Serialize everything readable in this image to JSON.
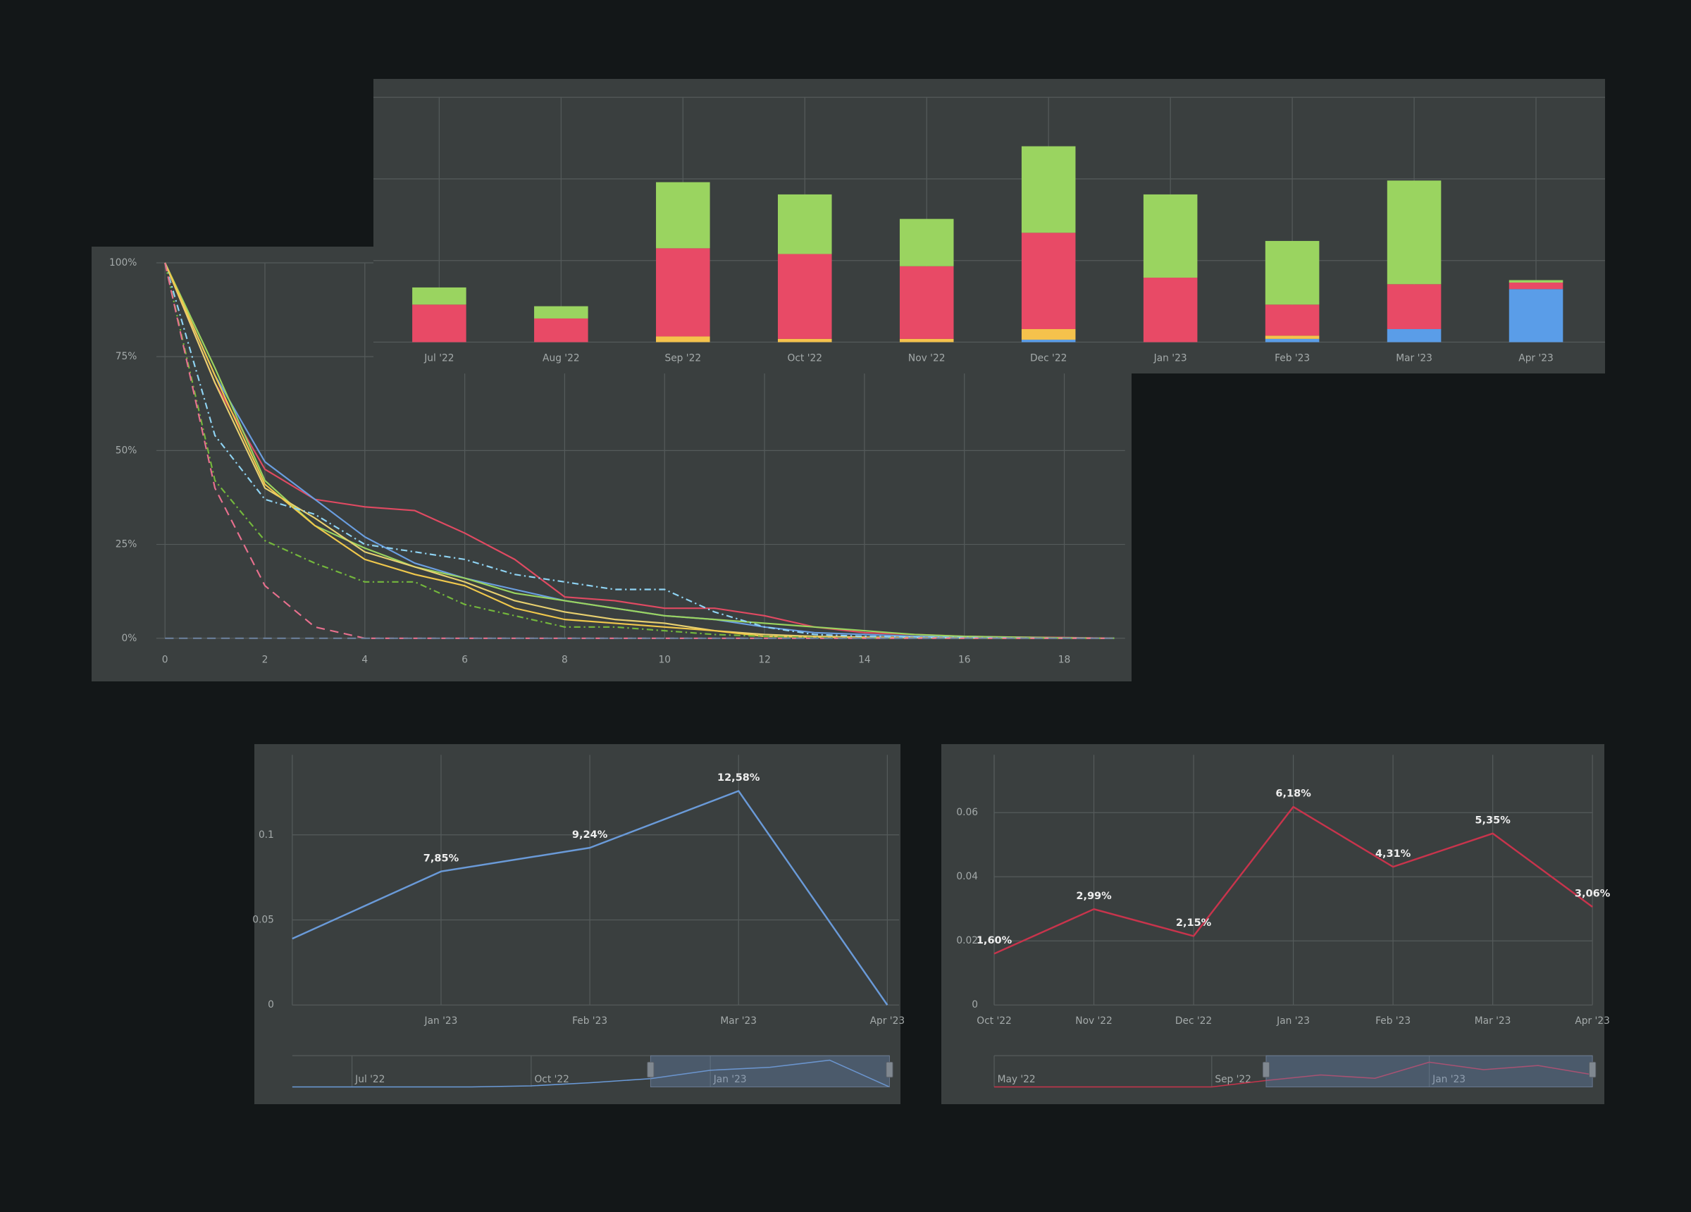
{
  "chart_data": [
    {
      "type": "line",
      "x": [
        0,
        1,
        2,
        3,
        4,
        5,
        6,
        7,
        8,
        9,
        10,
        11,
        12,
        13,
        14,
        15,
        16,
        17,
        18,
        19
      ],
      "xlim": [
        0,
        19
      ],
      "xticks": [
        0,
        2,
        4,
        6,
        8,
        10,
        12,
        14,
        16,
        18
      ],
      "ylim": [
        0,
        100
      ],
      "yticks": [
        {
          "value": 0,
          "label": "0%"
        },
        {
          "value": 25,
          "label": "25%"
        },
        {
          "value": 50,
          "label": "50%"
        },
        {
          "value": 75,
          "label": "75%"
        },
        {
          "value": 100,
          "label": "100%"
        }
      ],
      "grid": true,
      "series": [
        {
          "color": "#e04a62",
          "dash": "solid",
          "values": [
            100,
            68,
            45,
            37,
            35,
            34,
            28,
            21,
            11,
            10,
            8,
            8,
            6,
            3,
            1.5,
            1,
            0.5,
            0.3,
            0.2,
            0
          ]
        },
        {
          "color": "#6a9ee0",
          "dash": "solid",
          "values": [
            100,
            70,
            47,
            37,
            27,
            20,
            16,
            13,
            10,
            8,
            6,
            5,
            3,
            1.5,
            1,
            0.5,
            0.3,
            0.2,
            0.1,
            0
          ]
        },
        {
          "color": "#9ad460",
          "dash": "solid",
          "values": [
            100,
            72,
            42,
            30,
            24,
            19,
            16,
            12,
            10,
            8,
            6,
            5,
            4,
            3,
            2,
            1,
            0.5,
            0.3,
            0.1,
            0
          ]
        },
        {
          "color": "#e8d070",
          "dash": "solid",
          "values": [
            100,
            68,
            40,
            32,
            23,
            19,
            15,
            10,
            7,
            5,
            4,
            2,
            1,
            0.5,
            0.3,
            0.2,
            0.1,
            0,
            0,
            0
          ]
        },
        {
          "color": "#f0c84c",
          "dash": "solid",
          "values": [
            100,
            70,
            41,
            30,
            21,
            17,
            14,
            8,
            5,
            4,
            3,
            2,
            0.5,
            0.3,
            0.2,
            0.1,
            0,
            0,
            0,
            0
          ]
        },
        {
          "color": "#8fd4f4",
          "dash": "dash-dot",
          "values": [
            100,
            54,
            37,
            33,
            25,
            23,
            21,
            17,
            15,
            13,
            13,
            7,
            3,
            1,
            0.5,
            0.3,
            0.2,
            0.1,
            0,
            0
          ]
        },
        {
          "color": "#74b83c",
          "dash": "dash-dot",
          "values": [
            100,
            42,
            26,
            20,
            15,
            15,
            9,
            6,
            3,
            3,
            2,
            1,
            0.5,
            0.2,
            0,
            0,
            0,
            0,
            0,
            0
          ]
        },
        {
          "color": "#e8708e",
          "dash": "dash",
          "values": [
            100,
            40,
            14,
            3,
            0,
            0,
            0,
            0,
            0,
            0,
            0,
            0,
            0,
            0,
            0,
            0,
            0,
            0,
            0,
            0
          ]
        },
        {
          "color": "#6a7f9a",
          "dash": "dash",
          "values": [
            0,
            0,
            0,
            0,
            0,
            0,
            0,
            0,
            0,
            0,
            0,
            0,
            0,
            0,
            0,
            0,
            0,
            0,
            0,
            0
          ]
        }
      ]
    },
    {
      "type": "bar",
      "stacked": true,
      "categories": [
        "Jul '22",
        "Aug '22",
        "Sep '22",
        "Oct '22",
        "Nov '22",
        "Dec '22",
        "Jan '23",
        "Feb '23",
        "Mar '23",
        "Apr '23"
      ],
      "ylim": [
        0,
        3
      ],
      "yticks": [
        0,
        1,
        2,
        3
      ],
      "ytick_labels": false,
      "grid": true,
      "series": [
        {
          "color": "#5a9de8",
          "values": [
            0,
            0,
            0,
            0,
            0,
            0.03,
            0,
            0.04,
            0.16,
            0.65
          ]
        },
        {
          "color": "#f5c24c",
          "values": [
            0,
            0,
            0.07,
            0.04,
            0.04,
            0.13,
            0,
            0.04,
            0,
            0
          ]
        },
        {
          "color": "#e84a66",
          "values": [
            0.46,
            0.29,
            1.08,
            1.04,
            0.89,
            1.18,
            0.79,
            0.38,
            0.55,
            0.08
          ]
        },
        {
          "color": "#9ad460",
          "values": [
            0.21,
            0.15,
            0.81,
            0.73,
            0.58,
            1.06,
            1.02,
            0.78,
            1.27,
            0.03
          ]
        }
      ]
    },
    {
      "type": "line",
      "categories": [
        null,
        "Jan '23",
        "Feb '23",
        "Mar '23",
        "Apr '23"
      ],
      "values": [
        0.039,
        0.0785,
        0.0924,
        0.1258,
        0
      ],
      "value_labels": [
        null,
        "7,85%",
        "9,24%",
        "12,58%",
        null
      ],
      "color": "#6a9ad8",
      "ylim": [
        0,
        0.147
      ],
      "yticks": [
        0,
        0.05,
        0.1
      ],
      "grid": true,
      "navigator": {
        "categories": [
          null,
          "Jul '22",
          null,
          null,
          "Oct '22",
          null,
          null,
          "Jan '23",
          null,
          null,
          null
        ],
        "values": [
          0,
          0,
          0,
          0,
          0.005,
          0.02,
          0.039,
          0.0785,
          0.0924,
          0.1258,
          0
        ],
        "selection": [
          6,
          10
        ]
      }
    },
    {
      "type": "line",
      "categories": [
        "Oct '22",
        "Nov '22",
        "Dec '22",
        "Jan '23",
        "Feb '23",
        "Mar '23",
        "Apr '23"
      ],
      "values": [
        0.016,
        0.0299,
        0.0215,
        0.0618,
        0.0431,
        0.0535,
        0.0306
      ],
      "value_labels": [
        "1,60%",
        "2,99%",
        "2,15%",
        "6,18%",
        "4,31%",
        "5,35%",
        "3,06%"
      ],
      "color": "#c8344c",
      "ylim": [
        0,
        0.078
      ],
      "yticks": [
        0,
        0.02,
        0.04,
        0.06
      ],
      "grid": true,
      "navigator": {
        "categories": [
          "May '22",
          null,
          null,
          null,
          "Sep '22",
          null,
          null,
          null,
          "Jan '23",
          null,
          null,
          null
        ],
        "values": [
          0,
          0,
          0,
          0,
          0,
          0.016,
          0.0299,
          0.0215,
          0.0618,
          0.0431,
          0.0535,
          0.0306
        ],
        "selection": [
          5,
          11
        ]
      }
    }
  ]
}
